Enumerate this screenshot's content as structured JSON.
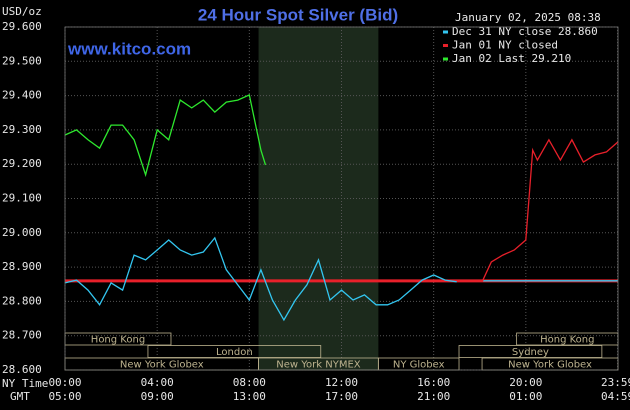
{
  "chart_data": {
    "type": "line",
    "title": "24 Hour Spot Silver (Bid)",
    "timestamp": "January 02, 2025 08:38",
    "watermark": "www.kitco.com",
    "ylabel": "USD/oz",
    "xlabel": "NY Time",
    "x2label": "GMT",
    "xlim": [
      0,
      24
    ],
    "ylim": [
      28.6,
      29.6
    ],
    "grid": true,
    "yticks": [
      {
        "value": 28.6,
        "label": "28.600"
      },
      {
        "value": 28.7,
        "label": "28.700"
      },
      {
        "value": 28.8,
        "label": "28.800"
      },
      {
        "value": 28.9,
        "label": "28.900"
      },
      {
        "value": 29.0,
        "label": "29.000"
      },
      {
        "value": 29.1,
        "label": "29.100"
      },
      {
        "value": 29.2,
        "label": "29.200"
      },
      {
        "value": 29.3,
        "label": "29.300"
      },
      {
        "value": 29.4,
        "label": "29.400"
      },
      {
        "value": 29.5,
        "label": "29.500"
      },
      {
        "value": 29.6,
        "label": "29.600"
      }
    ],
    "xticks": [
      {
        "value": 0,
        "label": "00:00"
      },
      {
        "value": 4,
        "label": "04:00"
      },
      {
        "value": 8,
        "label": "08:00"
      },
      {
        "value": 12,
        "label": "12:00"
      },
      {
        "value": 16,
        "label": "16:00"
      },
      {
        "value": 20,
        "label": "20:00"
      },
      {
        "value": 23.983,
        "label": "23:59"
      }
    ],
    "x2ticks": [
      {
        "value": 0,
        "label": "05:00"
      },
      {
        "value": 4,
        "label": "09:00"
      },
      {
        "value": 8,
        "label": "13:00"
      },
      {
        "value": 12,
        "label": "17:00"
      },
      {
        "value": 16,
        "label": "21:00"
      },
      {
        "value": 20,
        "label": "01:00"
      },
      {
        "value": 23.983,
        "label": "04:59"
      }
    ],
    "shaded_span": [
      8.4,
      13.6
    ],
    "close_line": {
      "value": 28.86,
      "color": "#e8202a"
    },
    "sessions": [
      [
        {
          "name": "Hong Kong",
          "start": 0,
          "end": 4.6
        },
        {
          "name": "Hong Kong",
          "start": 19.6,
          "end": 24
        }
      ],
      [
        {
          "name": "London",
          "start": 3.6,
          "end": 11.1
        },
        {
          "name": "Sydney",
          "start": 17.1,
          "end": 23.3
        }
      ],
      [
        {
          "name": "New York Globex",
          "start": 0,
          "end": 8.4
        },
        {
          "name": "New York NYMEX",
          "start": 8.4,
          "end": 13.6
        },
        {
          "name": "NY Globex",
          "start": 13.6,
          "end": 17.1
        },
        {
          "name": "New York Globex",
          "start": 18.1,
          "end": 24
        }
      ]
    ],
    "series": [
      {
        "name": "Dec 31 NY close 28.860",
        "color": "#33c6f0",
        "x": [
          0,
          0.5,
          1,
          1.5,
          2,
          2.5,
          3,
          3.5,
          4,
          4.5,
          5,
          5.5,
          6,
          6.5,
          7,
          7.5,
          8,
          8.5,
          9,
          9.5,
          10,
          10.5,
          11,
          11.5,
          12,
          12.5,
          13,
          13.5,
          14,
          14.5,
          15,
          15.5,
          16,
          16.5,
          17,
          17.5,
          18.1,
          24
        ],
        "values": [
          28.854,
          28.862,
          28.833,
          28.79,
          28.854,
          28.833,
          28.935,
          28.921,
          28.95,
          28.979,
          28.95,
          28.935,
          28.944,
          28.985,
          28.892,
          28.848,
          28.804,
          28.892,
          28.804,
          28.746,
          28.804,
          28.848,
          28.921,
          28.804,
          28.833,
          28.804,
          28.819,
          28.79,
          28.79,
          28.804,
          28.833,
          28.862,
          28.877,
          28.862,
          28.857,
          null,
          28.86,
          28.86
        ]
      },
      {
        "name": "Jan 01 NY closed",
        "color": "#e8202a",
        "x": [
          18.1,
          18.5,
          19,
          19.5,
          20,
          20.3,
          20.5,
          21,
          21.5,
          22,
          22.5,
          23,
          23.5,
          24
        ],
        "values": [
          28.857,
          28.915,
          28.935,
          28.95,
          28.979,
          29.241,
          29.212,
          29.271,
          29.212,
          29.271,
          29.206,
          29.227,
          29.236,
          29.265
        ]
      },
      {
        "name": "Jan 02 Last 29.210",
        "color": "#2ee82e",
        "x": [
          0,
          0.5,
          1,
          1.5,
          2,
          2.5,
          3,
          3.5,
          4,
          4.5,
          5,
          5.5,
          6,
          6.5,
          7,
          7.5,
          8,
          8.5,
          8.7
        ],
        "values": [
          29.285,
          29.3,
          29.271,
          29.247,
          29.314,
          29.314,
          29.271,
          29.169,
          29.3,
          29.271,
          29.387,
          29.364,
          29.387,
          29.352,
          29.381,
          29.387,
          29.402,
          29.241,
          29.198
        ]
      }
    ]
  }
}
